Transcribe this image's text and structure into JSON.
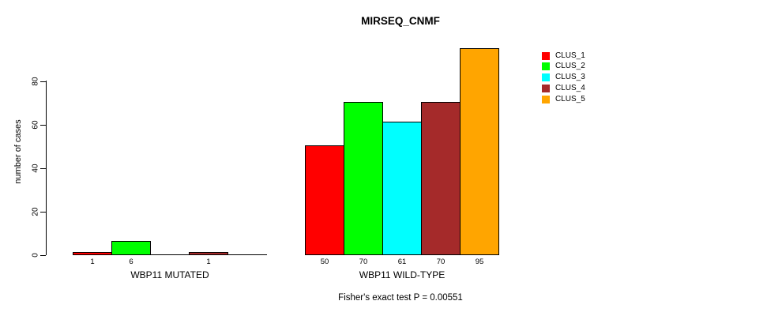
{
  "chart_data": {
    "type": "bar",
    "title": "MIRSEQ_CNMF",
    "ylabel": "number of cases",
    "xlabel": "",
    "yticks": [
      0,
      20,
      40,
      60,
      80
    ],
    "ylim": [
      0,
      95
    ],
    "grid": false,
    "legend_position": "top-right",
    "series": [
      {
        "name": "CLUS_1",
        "color": "#ff0000"
      },
      {
        "name": "CLUS_2",
        "color": "#00ff00"
      },
      {
        "name": "CLUS_3",
        "color": "#00ffff"
      },
      {
        "name": "CLUS_4",
        "color": "#a52a2a"
      },
      {
        "name": "CLUS_5",
        "color": "#ffa500"
      }
    ],
    "groups": [
      {
        "label": "WBP11 MUTATED",
        "values": [
          1,
          6,
          0,
          1,
          0
        ],
        "bar_labels": [
          "1",
          "6",
          "",
          "1",
          ""
        ]
      },
      {
        "label": "WBP11 WILD-TYPE",
        "values": [
          50,
          70,
          61,
          70,
          95
        ],
        "bar_labels": [
          "50",
          "70",
          "61",
          "70",
          "95"
        ]
      }
    ],
    "annotation": "Fisher's exact test P = 0.00551"
  }
}
